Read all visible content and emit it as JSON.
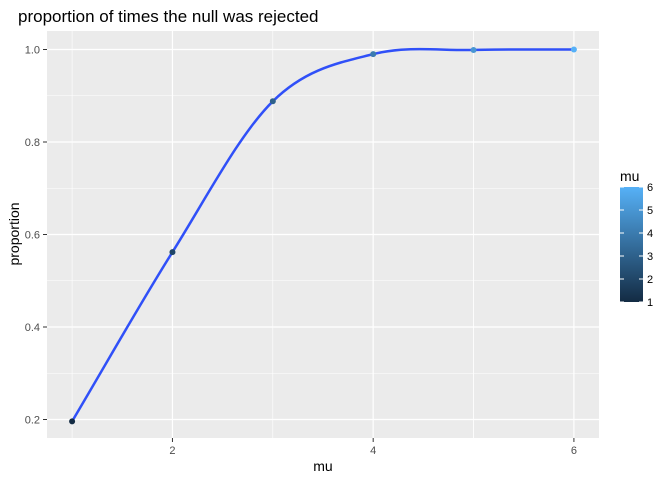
{
  "chart_data": {
    "type": "line",
    "title": "proportion of times the null was rejected",
    "xlabel": "mu",
    "ylabel": "proportion",
    "xlim": [
      0.75,
      6.25
    ],
    "ylim": [
      0.16,
      1.04
    ],
    "x_ticks": [
      2,
      4,
      6
    ],
    "y_ticks": [
      0.2,
      0.4,
      0.6,
      0.8,
      1.0
    ],
    "x_tick_labels": [
      "2",
      "4",
      "6"
    ],
    "y_tick_labels": [
      "0.2",
      "0.4",
      "0.6",
      "0.8",
      "1.0"
    ],
    "grid": true,
    "legend_position": "right",
    "series": [
      {
        "x": [
          1,
          2,
          3,
          4,
          5,
          6
        ],
        "y": [
          0.196,
          0.562,
          0.888,
          0.99,
          0.999,
          1.0
        ],
        "color_values": [
          1,
          2,
          3,
          4,
          5,
          6
        ]
      }
    ],
    "smooth_line_color": "#3050f8",
    "legend": {
      "title": "mu",
      "ticks": [
        1,
        2,
        3,
        4,
        5,
        6
      ],
      "tick_labels": [
        "1",
        "2",
        "3",
        "4",
        "5",
        "6"
      ],
      "color_low": "#132b43",
      "color_high": "#56b1f7"
    },
    "panel_background": "#ebebeb",
    "grid_color": "#ffffff"
  }
}
